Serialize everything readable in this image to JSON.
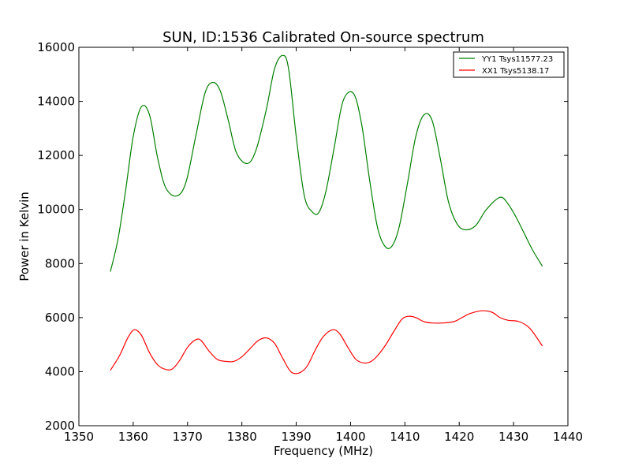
{
  "chart_data": {
    "type": "line",
    "title": "SUN, ID:1536 Calibrated On-source spectrum",
    "xlabel": "Frequency (MHz)",
    "ylabel": "Power in Kelvin",
    "xlim": [
      1350,
      1440
    ],
    "ylim": [
      2000,
      16000
    ],
    "xticks": [
      1350,
      1360,
      1370,
      1380,
      1390,
      1400,
      1410,
      1420,
      1430,
      1440
    ],
    "yticks": [
      2000,
      4000,
      6000,
      8000,
      10000,
      12000,
      14000,
      16000
    ],
    "xtick_labels": [
      "1350",
      "1360",
      "1370",
      "1380",
      "1390",
      "1400",
      "1410",
      "1420",
      "1430",
      "1440"
    ],
    "ytick_labels": [
      "2000",
      "4000",
      "6000",
      "8000",
      "10000",
      "12000",
      "14000",
      "16000"
    ],
    "grid": false,
    "legend_position": "top-right",
    "series": [
      {
        "name": "YY1 Tsys11577.23",
        "color": "#008000",
        "x": [
          1355.8,
          1357.2,
          1358.6,
          1360.0,
          1361.5,
          1363.0,
          1364.5,
          1366.0,
          1368.0,
          1369.7,
          1371.5,
          1373.2,
          1374.6,
          1376.0,
          1377.5,
          1379.0,
          1381.0,
          1382.6,
          1384.5,
          1386.0,
          1387.5,
          1388.6,
          1390.0,
          1391.5,
          1393.0,
          1394.2,
          1395.5,
          1397.0,
          1398.6,
          1400.5,
          1402.0,
          1403.5,
          1405.0,
          1406.5,
          1407.8,
          1409.0,
          1410.5,
          1412.0,
          1413.5,
          1415.0,
          1416.5,
          1418.0,
          1419.5,
          1421.0,
          1423.0,
          1425.0,
          1427.5,
          1429.0,
          1430.5,
          1432.0,
          1433.5,
          1435.3
        ],
        "y": [
          7700,
          8900,
          10700,
          12700,
          13800,
          13500,
          11900,
          10800,
          10500,
          11000,
          12700,
          14300,
          14700,
          14400,
          13300,
          12100,
          11700,
          12200,
          13700,
          15200,
          15700,
          15200,
          12700,
          10500,
          9900,
          9900,
          10700,
          12300,
          14000,
          14300,
          13200,
          11100,
          9300,
          8600,
          8700,
          9400,
          11000,
          12700,
          13500,
          13300,
          11900,
          10300,
          9500,
          9250,
          9400,
          10000,
          10450,
          10200,
          9700,
          9100,
          8500,
          7900
        ]
      },
      {
        "name": "XX1 Tsys5138.17",
        "color": "#ff0000",
        "x": [
          1355.8,
          1357.5,
          1359.0,
          1360.2,
          1361.5,
          1363.0,
          1364.5,
          1366.0,
          1367.2,
          1368.5,
          1370.0,
          1371.5,
          1372.5,
          1374.0,
          1375.5,
          1377.0,
          1378.5,
          1380.0,
          1381.5,
          1383.0,
          1384.5,
          1386.0,
          1387.5,
          1389.0,
          1390.5,
          1392.0,
          1393.5,
          1395.0,
          1396.7,
          1398.0,
          1399.5,
          1401.0,
          1402.5,
          1403.8,
          1405.0,
          1406.5,
          1408.0,
          1409.5,
          1410.8,
          1412.0,
          1413.5,
          1415.0,
          1417.0,
          1419.0,
          1420.5,
          1422.0,
          1424.0,
          1426.0,
          1427.5,
          1429.0,
          1431.0,
          1433.0,
          1435.3
        ],
        "y": [
          4050,
          4600,
          5250,
          5550,
          5350,
          4700,
          4250,
          4080,
          4100,
          4400,
          4900,
          5180,
          5150,
          4750,
          4450,
          4380,
          4380,
          4550,
          4850,
          5150,
          5250,
          5050,
          4500,
          4000,
          3950,
          4200,
          4800,
          5300,
          5550,
          5400,
          4900,
          4450,
          4320,
          4380,
          4600,
          5000,
          5500,
          5950,
          6050,
          6000,
          5850,
          5800,
          5800,
          5850,
          6000,
          6150,
          6250,
          6200,
          6000,
          5900,
          5850,
          5600,
          4950
        ]
      }
    ]
  }
}
